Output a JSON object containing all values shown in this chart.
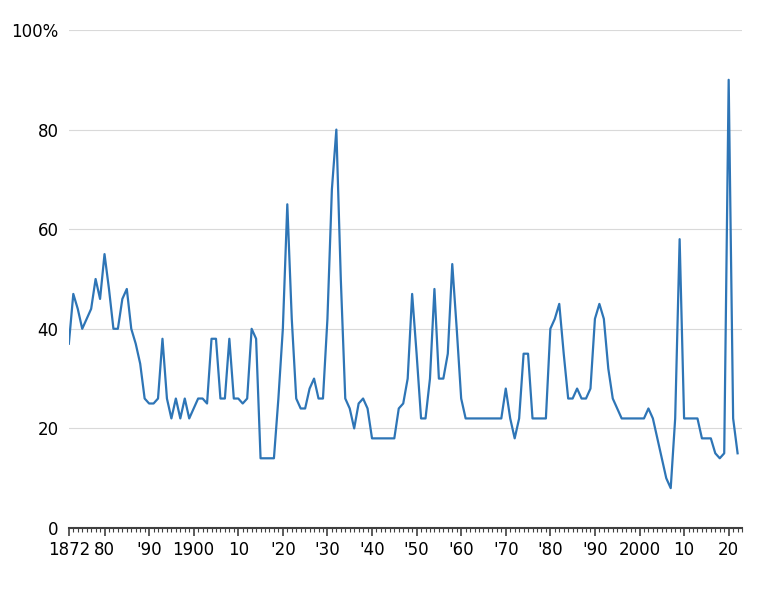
{
  "line_color": "#2e75b6",
  "line_width": 1.6,
  "background_color": "#ffffff",
  "ylim": [
    0,
    100
  ],
  "xlim": [
    1872,
    2023
  ],
  "yticks": [
    0,
    20,
    40,
    60,
    80,
    100
  ],
  "ytick_labels": [
    "0",
    "20",
    "40",
    "60",
    "80",
    "100%"
  ],
  "xtick_positions": [
    1872,
    1880,
    1890,
    1900,
    1910,
    1920,
    1930,
    1940,
    1950,
    1960,
    1970,
    1980,
    1990,
    2000,
    2010,
    2020
  ],
  "xtick_labels": [
    "1872",
    "80",
    "'90",
    "1900",
    "10",
    "'20",
    "'30",
    "'40",
    "'50",
    "'60",
    "'70",
    "'80",
    "'90",
    "2000",
    "10",
    "20"
  ],
  "data": [
    [
      1872,
      37
    ],
    [
      1873,
      47
    ],
    [
      1874,
      44
    ],
    [
      1875,
      40
    ],
    [
      1876,
      42
    ],
    [
      1877,
      44
    ],
    [
      1878,
      50
    ],
    [
      1879,
      46
    ],
    [
      1880,
      55
    ],
    [
      1881,
      48
    ],
    [
      1882,
      40
    ],
    [
      1883,
      40
    ],
    [
      1884,
      46
    ],
    [
      1885,
      48
    ],
    [
      1886,
      40
    ],
    [
      1887,
      37
    ],
    [
      1888,
      33
    ],
    [
      1889,
      26
    ],
    [
      1890,
      25
    ],
    [
      1891,
      25
    ],
    [
      1892,
      26
    ],
    [
      1893,
      38
    ],
    [
      1894,
      26
    ],
    [
      1895,
      22
    ],
    [
      1896,
      26
    ],
    [
      1897,
      22
    ],
    [
      1898,
      26
    ],
    [
      1899,
      22
    ],
    [
      1900,
      24
    ],
    [
      1901,
      26
    ],
    [
      1902,
      26
    ],
    [
      1903,
      25
    ],
    [
      1904,
      38
    ],
    [
      1905,
      38
    ],
    [
      1906,
      26
    ],
    [
      1907,
      26
    ],
    [
      1908,
      38
    ],
    [
      1909,
      26
    ],
    [
      1910,
      26
    ],
    [
      1911,
      25
    ],
    [
      1912,
      26
    ],
    [
      1913,
      40
    ],
    [
      1914,
      38
    ],
    [
      1915,
      14
    ],
    [
      1916,
      14
    ],
    [
      1917,
      14
    ],
    [
      1918,
      14
    ],
    [
      1919,
      26
    ],
    [
      1920,
      40
    ],
    [
      1921,
      65
    ],
    [
      1922,
      42
    ],
    [
      1923,
      26
    ],
    [
      1924,
      24
    ],
    [
      1925,
      24
    ],
    [
      1926,
      28
    ],
    [
      1927,
      30
    ],
    [
      1928,
      26
    ],
    [
      1929,
      26
    ],
    [
      1930,
      42
    ],
    [
      1931,
      68
    ],
    [
      1932,
      80
    ],
    [
      1933,
      50
    ],
    [
      1934,
      26
    ],
    [
      1935,
      24
    ],
    [
      1936,
      20
    ],
    [
      1937,
      25
    ],
    [
      1938,
      26
    ],
    [
      1939,
      24
    ],
    [
      1940,
      18
    ],
    [
      1941,
      18
    ],
    [
      1942,
      18
    ],
    [
      1943,
      18
    ],
    [
      1944,
      18
    ],
    [
      1945,
      18
    ],
    [
      1946,
      24
    ],
    [
      1947,
      25
    ],
    [
      1948,
      30
    ],
    [
      1949,
      47
    ],
    [
      1950,
      35
    ],
    [
      1951,
      22
    ],
    [
      1952,
      22
    ],
    [
      1953,
      30
    ],
    [
      1954,
      48
    ],
    [
      1955,
      30
    ],
    [
      1956,
      30
    ],
    [
      1957,
      35
    ],
    [
      1958,
      53
    ],
    [
      1959,
      40
    ],
    [
      1960,
      26
    ],
    [
      1961,
      22
    ],
    [
      1962,
      22
    ],
    [
      1963,
      22
    ],
    [
      1964,
      22
    ],
    [
      1965,
      22
    ],
    [
      1966,
      22
    ],
    [
      1967,
      22
    ],
    [
      1968,
      22
    ],
    [
      1969,
      22
    ],
    [
      1970,
      28
    ],
    [
      1971,
      22
    ],
    [
      1972,
      18
    ],
    [
      1973,
      22
    ],
    [
      1974,
      35
    ],
    [
      1975,
      35
    ],
    [
      1976,
      22
    ],
    [
      1977,
      22
    ],
    [
      1978,
      22
    ],
    [
      1979,
      22
    ],
    [
      1980,
      40
    ],
    [
      1981,
      42
    ],
    [
      1982,
      45
    ],
    [
      1983,
      35
    ],
    [
      1984,
      26
    ],
    [
      1985,
      26
    ],
    [
      1986,
      28
    ],
    [
      1987,
      26
    ],
    [
      1988,
      26
    ],
    [
      1989,
      28
    ],
    [
      1990,
      42
    ],
    [
      1991,
      45
    ],
    [
      1992,
      42
    ],
    [
      1993,
      32
    ],
    [
      1994,
      26
    ],
    [
      1995,
      24
    ],
    [
      1996,
      22
    ],
    [
      1997,
      22
    ],
    [
      1998,
      22
    ],
    [
      1999,
      22
    ],
    [
      2000,
      22
    ],
    [
      2001,
      22
    ],
    [
      2002,
      24
    ],
    [
      2003,
      22
    ],
    [
      2004,
      18
    ],
    [
      2005,
      14
    ],
    [
      2006,
      10
    ],
    [
      2007,
      8
    ],
    [
      2008,
      22
    ],
    [
      2009,
      58
    ],
    [
      2010,
      22
    ],
    [
      2011,
      22
    ],
    [
      2012,
      22
    ],
    [
      2013,
      22
    ],
    [
      2014,
      18
    ],
    [
      2015,
      18
    ],
    [
      2016,
      18
    ],
    [
      2017,
      15
    ],
    [
      2018,
      14
    ],
    [
      2019,
      15
    ],
    [
      2020,
      90
    ],
    [
      2021,
      22
    ],
    [
      2022,
      15
    ]
  ]
}
